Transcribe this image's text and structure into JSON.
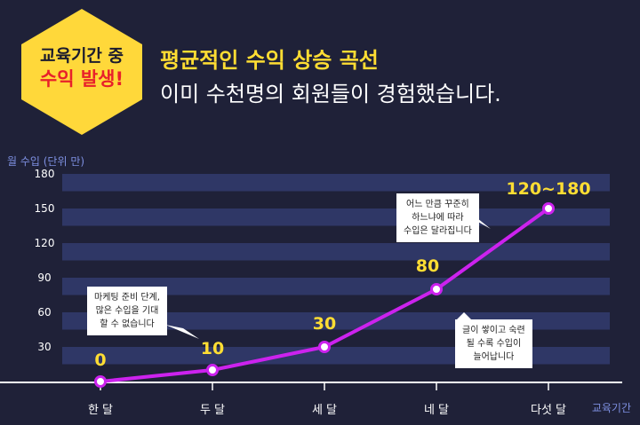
{
  "badge": {
    "line1": "교육기간 중",
    "line2": "수익 발생!"
  },
  "headline": {
    "title": "평균적인 수익 상승 곡선",
    "subtitle": "이미 수천명의 회원들이 경험했습니다."
  },
  "callouts": [
    {
      "lines": [
        "마케팅 준비 단계,",
        "많은 수입을 기대",
        "할 수 없습니다"
      ]
    },
    {
      "lines": [
        "어느 만큼 꾸준히",
        "하느냐에 따라",
        "수입은 달라집니다"
      ]
    },
    {
      "lines": [
        "글이 쌓이고 숙련",
        "될 수록 수입이",
        "늘어납니다"
      ]
    }
  ],
  "chart_data": {
    "type": "line",
    "ylabel": "월 수입 (단위 만)",
    "xlabel": "교육기간",
    "categories": [
      "한 달",
      "두 달",
      "세 달",
      "네 달",
      "다섯 달"
    ],
    "values": [
      0,
      10,
      30,
      80,
      150
    ],
    "data_labels": [
      "0",
      "10",
      "30",
      "80",
      "120~180"
    ],
    "yticks": [
      30,
      60,
      90,
      120,
      150,
      180
    ],
    "ylim": [
      0,
      180
    ],
    "grid": "horizontal bands",
    "colors": {
      "line": "#cc22ee",
      "marker_fill": "#ffffff",
      "data_label": "#ffdd33",
      "band": "#2f3766",
      "tick_label": "#ffffff",
      "axis": "#ffffff"
    }
  },
  "colors": {
    "background": "#1f2138",
    "badge_fill": "#ffd83a",
    "accent_yellow": "#ffdd33",
    "accent_red": "#e8202a"
  }
}
